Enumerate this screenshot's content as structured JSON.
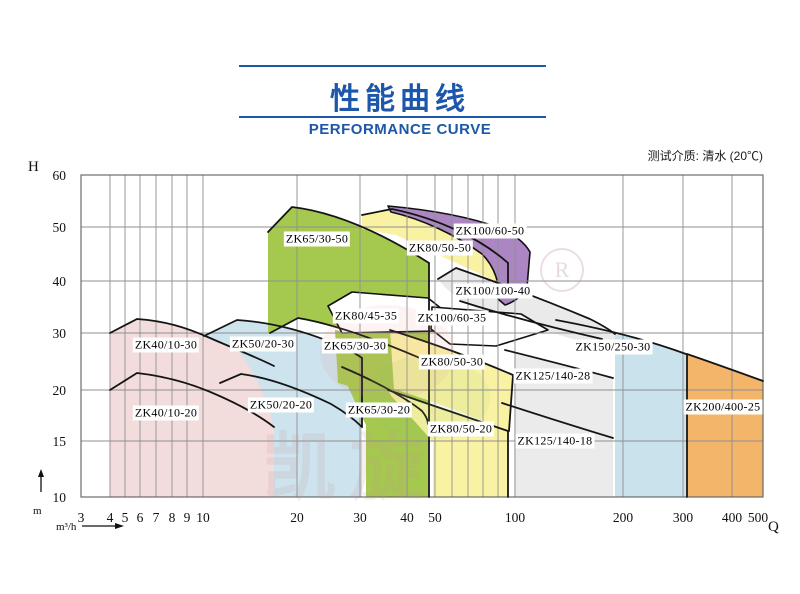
{
  "header": {
    "title": "性能曲线",
    "subtitle": "PERFORMANCE CURVE",
    "accent_color": "#1c57ab",
    "note": "测试介质: 清水 (20℃)"
  },
  "axes": {
    "y_symbol": "H",
    "y_unit": "m",
    "x_symbol": "Q",
    "x_unit": "m³/h"
  },
  "watermark": {
    "text": "凯旋",
    "badge": "R"
  },
  "chart_data": {
    "type": "area",
    "title": "性能曲线 (Performance Curve)",
    "xlabel": "Q (m³/h)",
    "ylabel": "H (m)",
    "x_scale": "log-like",
    "y_scale": "compressed",
    "xlim": [
      3,
      500
    ],
    "ylim": [
      10,
      60
    ],
    "grid": true,
    "note": "测试介质: 清水 (20℃)",
    "x_ticks": [
      "3",
      "4",
      "5",
      "6",
      "7",
      "8",
      "9",
      "10",
      "20",
      "30",
      "40",
      "50",
      "100",
      "200",
      "300",
      "400",
      "500"
    ],
    "y_ticks": [
      "60",
      "50",
      "40",
      "30",
      "20",
      "15",
      "10"
    ],
    "regions": [
      {
        "label": "ZK40/10-30",
        "color": "#f3dcdc",
        "q_range": [
          4,
          17
        ],
        "h_range": [
          15,
          33
        ]
      },
      {
        "label": "ZK40/10-20",
        "color": "#f3dcdc",
        "q_range": [
          4,
          17
        ],
        "h_range": [
          10,
          23
        ]
      },
      {
        "label": "ZK50/20-30",
        "color": "#cde3ed",
        "q_range": [
          9,
          30
        ],
        "h_range": [
          17,
          33
        ]
      },
      {
        "label": "ZK50/20-20",
        "color": "#cde3ed",
        "q_range": [
          9,
          30
        ],
        "h_range": [
          10,
          22
        ]
      },
      {
        "label": "ZK65/30-50",
        "color": "#a5c94e",
        "q_range": [
          17,
          43
        ],
        "h_range": [
          40,
          54
        ]
      },
      {
        "label": "ZK65/30-30",
        "color": "#a5c94e",
        "q_range": [
          20,
          43
        ],
        "h_range": [
          26,
          33
        ]
      },
      {
        "label": "ZK65/30-20",
        "color": "#a5c94e",
        "q_range": [
          24,
          43
        ],
        "h_range": [
          10,
          21
        ]
      },
      {
        "label": "ZK80/50-50",
        "color": "#f9f2a3",
        "q_range": [
          30,
          90
        ],
        "h_range": [
          40,
          53
        ]
      },
      {
        "label": "ZK80/45-35",
        "color": "#ffffff",
        "q_range": [
          30,
          55
        ],
        "h_range": [
          33,
          37
        ]
      },
      {
        "label": "ZK80/50-30",
        "color": "#f9f2a3",
        "q_range": [
          33,
          95
        ],
        "h_range": [
          24,
          32
        ]
      },
      {
        "label": "ZK80/50-20",
        "color": "#f9f2a3",
        "q_range": [
          36,
          95
        ],
        "h_range": [
          10,
          20
        ]
      },
      {
        "label": "ZK100/60-50",
        "color": "#ab86c2",
        "q_range": [
          35,
          110
        ],
        "h_range": [
          42,
          53
        ]
      },
      {
        "label": "ZK100/60-35",
        "color": "#ffffff",
        "q_range": [
          45,
          120
        ],
        "h_range": [
          30,
          35
        ]
      },
      {
        "label": "ZK100/100-40",
        "color": "#eaeaea",
        "q_range": [
          55,
          190
        ],
        "h_range": [
          33,
          44
        ]
      },
      {
        "label": "ZK125/140-28",
        "color": "#ebebeb",
        "q_range": [
          90,
          250
        ],
        "h_range": [
          21,
          28
        ]
      },
      {
        "label": "ZK125/140-18",
        "color": "#ebebeb",
        "q_range": [
          85,
          250
        ],
        "h_range": [
          11,
          18
        ]
      },
      {
        "label": "ZK150/250-30",
        "color": "#c9e2eb",
        "q_range": [
          120,
          300
        ],
        "h_range": [
          25,
          34
        ]
      },
      {
        "label": "ZK200/400-25",
        "color": "#f2b569",
        "q_range": [
          300,
          500
        ],
        "h_range": [
          18,
          27
        ]
      }
    ]
  }
}
